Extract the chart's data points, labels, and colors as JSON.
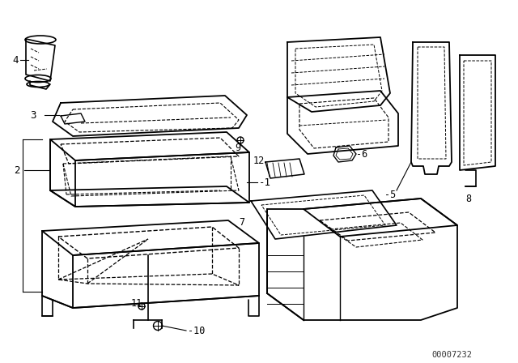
{
  "background_color": "#ffffff",
  "line_color": "#000000",
  "diagram_id": "00007232",
  "figsize": [
    6.4,
    4.48
  ],
  "dpi": 100
}
